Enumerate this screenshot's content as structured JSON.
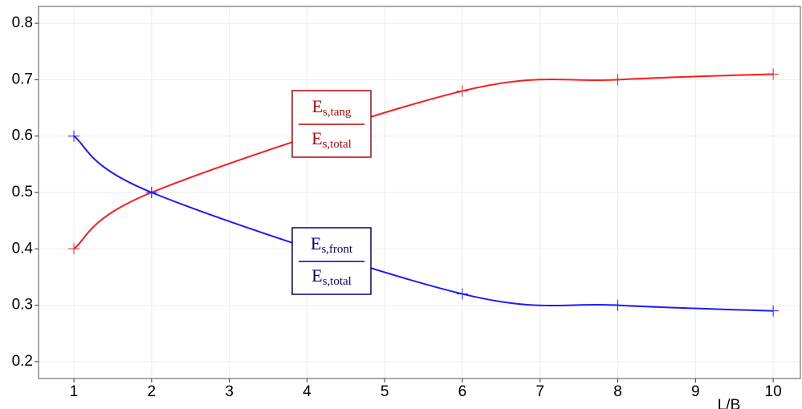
{
  "chart_data": {
    "type": "line",
    "x": [
      1,
      2,
      6,
      8,
      10
    ],
    "series": [
      {
        "name": "tang",
        "color": "#ff1a1a",
        "values": [
          0.4,
          0.5,
          0.68,
          0.7,
          0.71
        ]
      },
      {
        "name": "front",
        "color": "#1a1aff",
        "values": [
          0.6,
          0.5,
          0.32,
          0.3,
          0.29
        ]
      }
    ],
    "xlim": [
      0.545,
      10.35
    ],
    "xticks": [
      1,
      2,
      3,
      4,
      5,
      6,
      7,
      8,
      9,
      10
    ],
    "ylim": [
      0.17,
      0.83
    ],
    "yticks": [
      0.2,
      0.3,
      0.4,
      0.5,
      0.6,
      0.7,
      0.8
    ],
    "xlabel": "L/B",
    "grid": true,
    "annotations": [
      {
        "num": "E",
        "num_sub": "s,tang",
        "den": "E",
        "den_sub": "s,total",
        "color": "#c00000"
      },
      {
        "num": "E",
        "num_sub": "s,front",
        "den": "E",
        "den_sub": "s,total",
        "color": "#00008b"
      }
    ]
  }
}
